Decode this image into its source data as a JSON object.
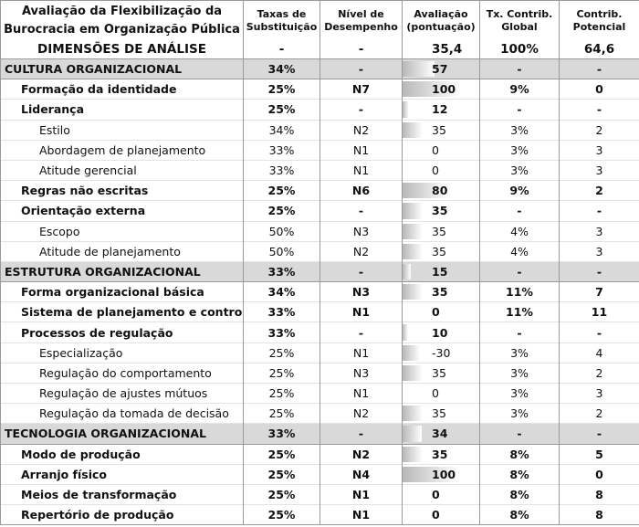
{
  "header": {
    "columns": [
      "Avaliação da  Flexibilização da\nBurocracia em Organização Pública",
      "Taxas de\nSubstituição",
      "Nível de\nDesempenho",
      "Avaliação\n(pontuação)",
      "Tx. Contrib.\nGlobal",
      "Contrib.\nPotencial"
    ],
    "summary": [
      "DIMENSÕES DE ANÁLISE",
      "-",
      "-",
      "35,4",
      "100%",
      "64,6"
    ]
  },
  "sections": [
    {
      "row": {
        "label": "CULTURA ORGANIZACIONAL",
        "taxa": "34%",
        "nivel": "-",
        "avaliacao": 57,
        "tx": "-",
        "contrib": "-"
      },
      "groups": [
        {
          "row": {
            "label": "Formação da identidade",
            "taxa": "25%",
            "nivel": "N7",
            "avaliacao": 100,
            "tx": "9%",
            "contrib": 0
          },
          "children": []
        },
        {
          "row": {
            "label": "Liderança",
            "taxa": "25%",
            "nivel": "-",
            "avaliacao": 12,
            "tx": "-",
            "contrib": "-"
          },
          "children": [
            {
              "label": "Estilo",
              "taxa": "34%",
              "nivel": "N2",
              "avaliacao": 35,
              "tx": "3%",
              "contrib": 2
            },
            {
              "label": "Abordagem de planejamento",
              "taxa": "33%",
              "nivel": "N1",
              "avaliacao": 0,
              "tx": "3%",
              "contrib": 3
            },
            {
              "label": "Atitude gerencial",
              "taxa": "33%",
              "nivel": "N1",
              "avaliacao": 0,
              "tx": "3%",
              "contrib": 3
            }
          ]
        },
        {
          "row": {
            "label": "Regras não escritas",
            "taxa": "25%",
            "nivel": "N6",
            "avaliacao": 80,
            "tx": "9%",
            "contrib": 2
          },
          "children": []
        },
        {
          "row": {
            "label": "Orientação externa",
            "taxa": "25%",
            "nivel": "-",
            "avaliacao": 35,
            "tx": "-",
            "contrib": "-"
          },
          "children": [
            {
              "label": "Escopo",
              "taxa": "50%",
              "nivel": "N3",
              "avaliacao": 35,
              "tx": "4%",
              "contrib": 3
            },
            {
              "label": "Atitude de planejamento",
              "taxa": "50%",
              "nivel": "N2",
              "avaliacao": 35,
              "tx": "4%",
              "contrib": 3
            }
          ]
        }
      ]
    },
    {
      "row": {
        "label": "ESTRUTURA ORGANIZACIONAL",
        "taxa": "33%",
        "nivel": "-",
        "avaliacao": 15,
        "tx": "-",
        "contrib": "-"
      },
      "groups": [
        {
          "row": {
            "label": "Forma organizacional básica",
            "taxa": "34%",
            "nivel": "N3",
            "avaliacao": 35,
            "tx": "11%",
            "contrib": 7
          },
          "children": []
        },
        {
          "row": {
            "label": "Sistema de planejamento e controle",
            "taxa": "33%",
            "nivel": "N1",
            "avaliacao": 0,
            "tx": "11%",
            "contrib": 11
          },
          "children": []
        },
        {
          "row": {
            "label": "Processos de regulação",
            "taxa": "33%",
            "nivel": "-",
            "avaliacao": 10,
            "tx": "-",
            "contrib": "-"
          },
          "children": [
            {
              "label": "Especialização",
              "taxa": "25%",
              "nivel": "N1",
              "avaliacao": -30,
              "tx": "3%",
              "contrib": 4
            },
            {
              "label": "Regulação do comportamento",
              "taxa": "25%",
              "nivel": "N3",
              "avaliacao": 35,
              "tx": "3%",
              "contrib": 2
            },
            {
              "label": "Regulação de ajustes mútuos",
              "taxa": "25%",
              "nivel": "N1",
              "avaliacao": 0,
              "tx": "3%",
              "contrib": 3
            },
            {
              "label": "Regulação da tomada de decisão",
              "taxa": "25%",
              "nivel": "N2",
              "avaliacao": 35,
              "tx": "3%",
              "contrib": 2
            }
          ]
        }
      ]
    },
    {
      "row": {
        "label": "TECNOLOGIA ORGANIZACIONAL",
        "taxa": "33%",
        "nivel": "-",
        "avaliacao": 34,
        "tx": "-",
        "contrib": "-"
      },
      "groups": [
        {
          "row": {
            "label": "Modo de produção",
            "taxa": "25%",
            "nivel": "N2",
            "avaliacao": 35,
            "tx": "8%",
            "contrib": 5
          },
          "children": []
        },
        {
          "row": {
            "label": "Arranjo físico",
            "taxa": "25%",
            "nivel": "N4",
            "avaliacao": 100,
            "tx": "8%",
            "contrib": 0
          },
          "children": []
        },
        {
          "row": {
            "label": "Meios de transformação",
            "taxa": "25%",
            "nivel": "N1",
            "avaliacao": 0,
            "tx": "8%",
            "contrib": 8
          },
          "children": []
        },
        {
          "row": {
            "label": "Repertório de produção",
            "taxa": "25%",
            "nivel": "N1",
            "avaliacao": 0,
            "tx": "8%",
            "contrib": 8
          },
          "children": []
        }
      ]
    }
  ]
}
